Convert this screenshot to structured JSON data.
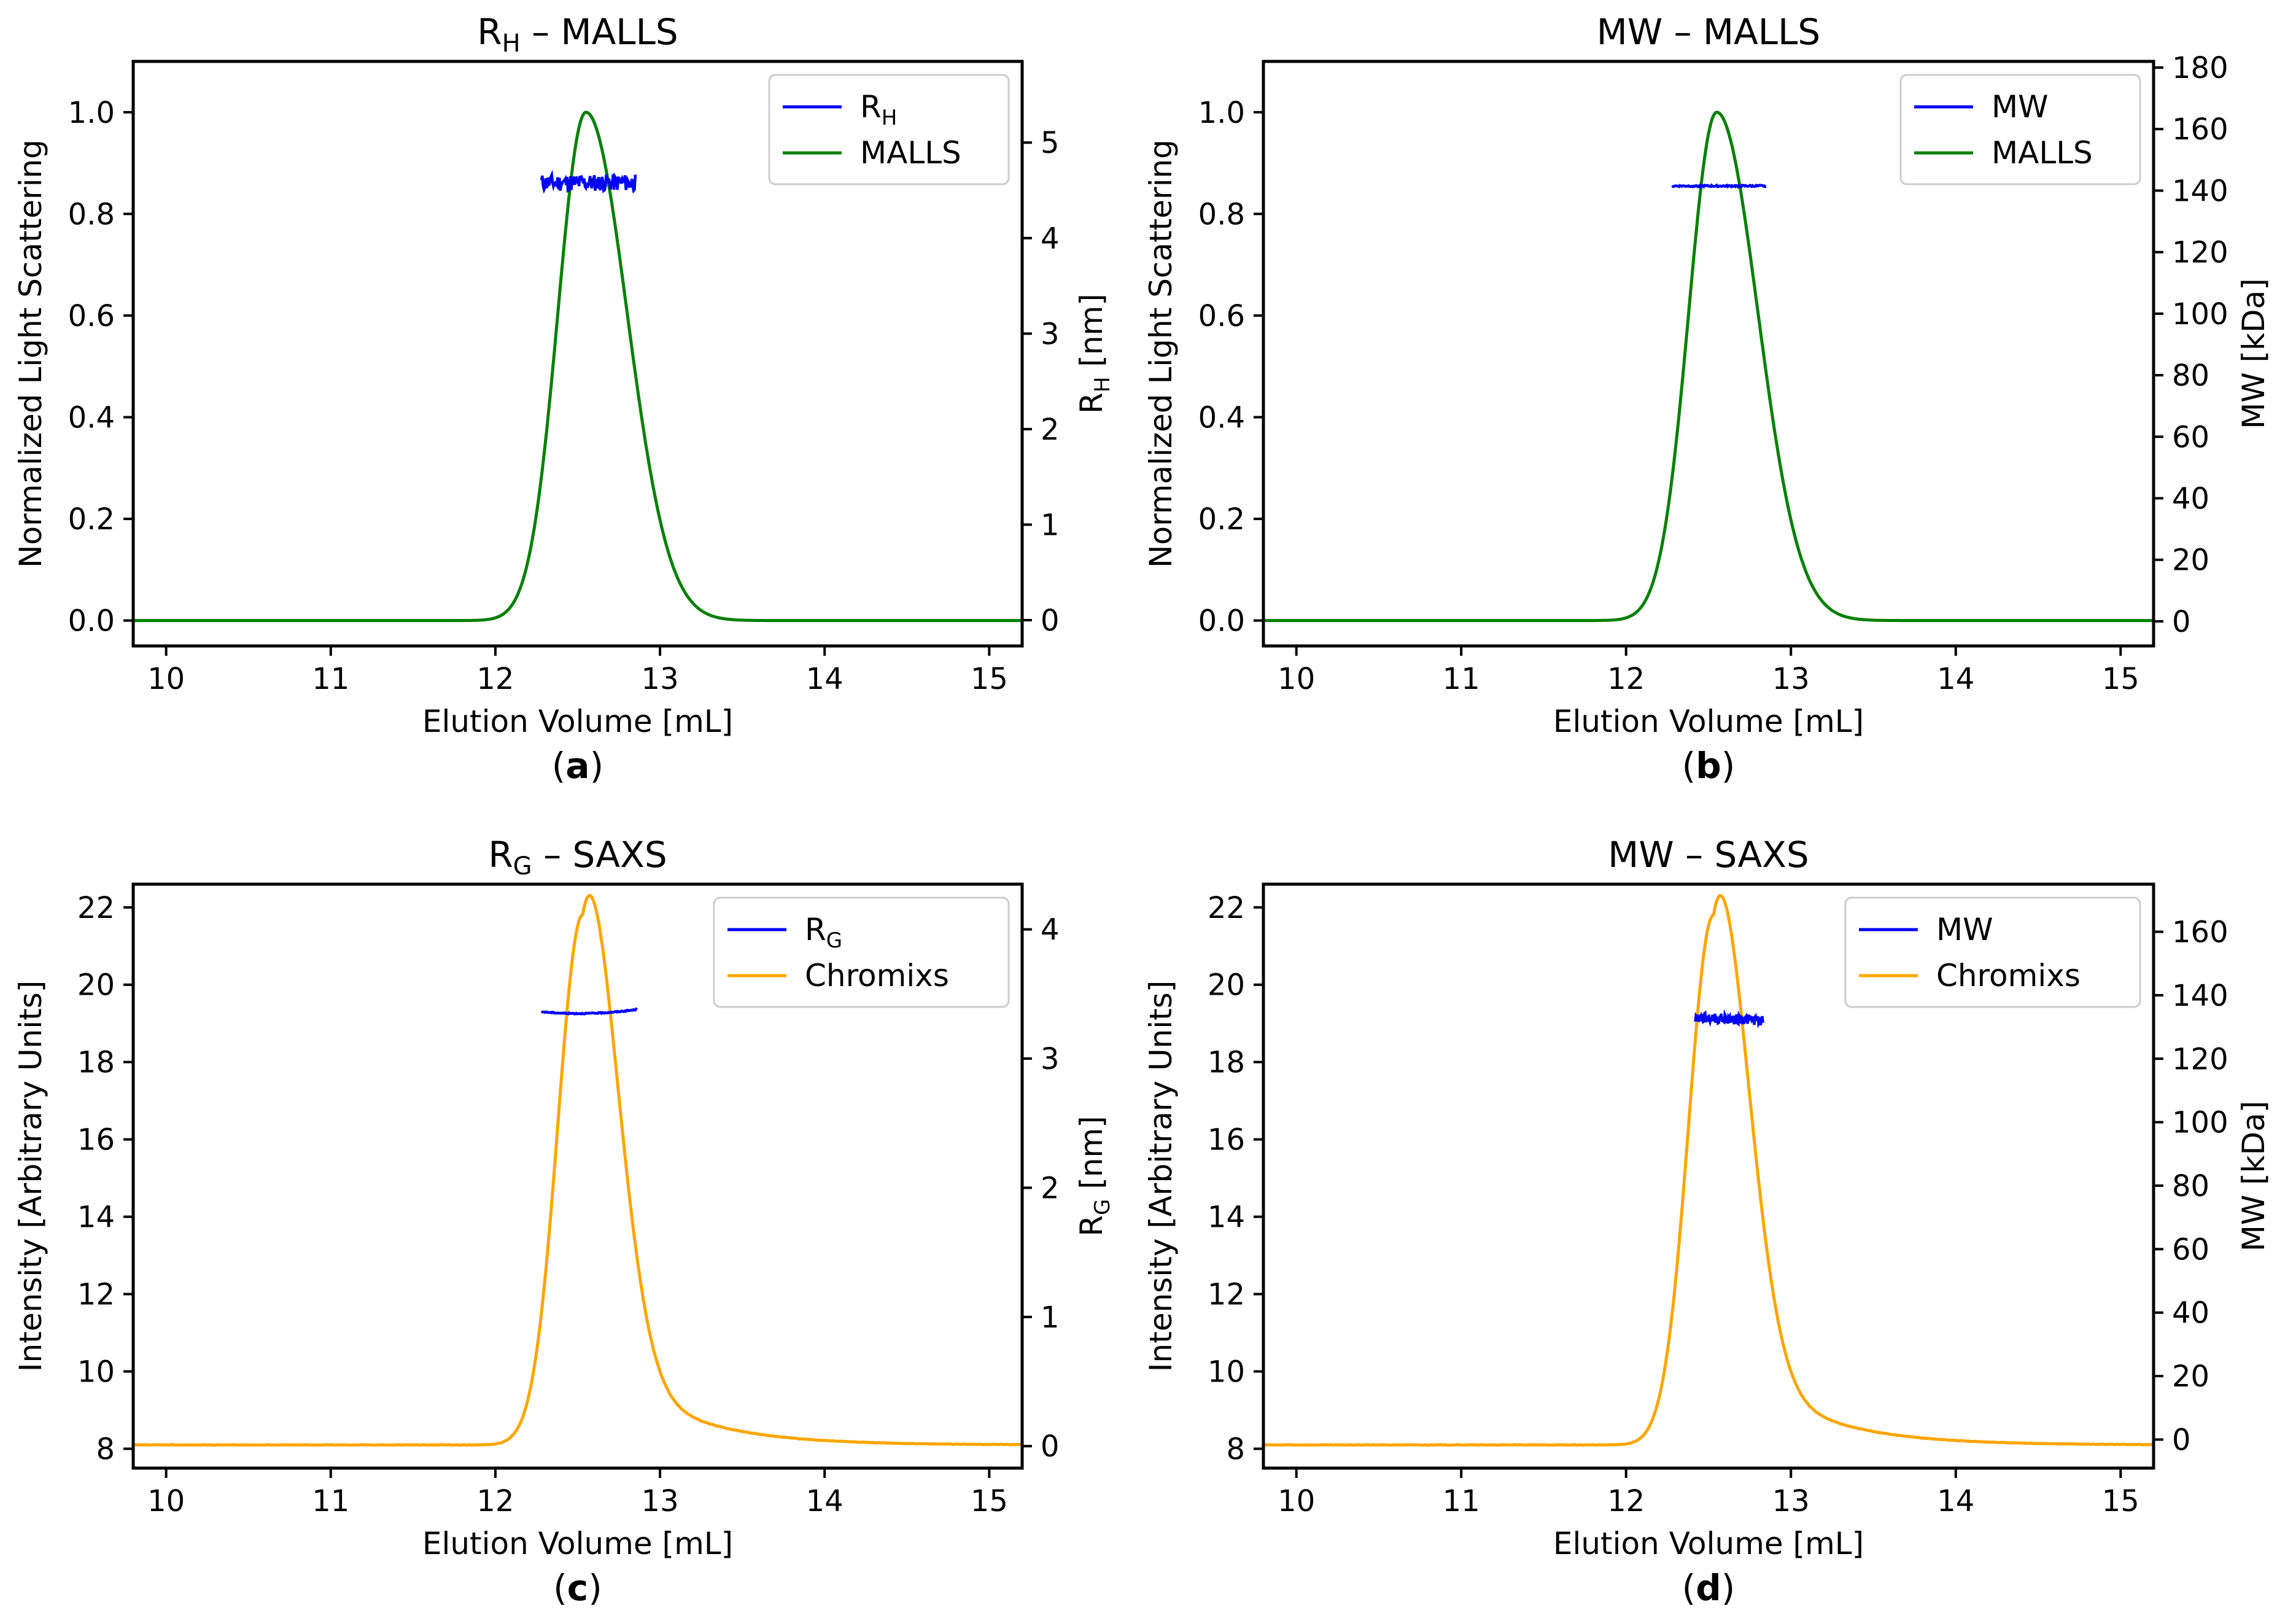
{
  "chart_data": [
    {
      "type": "line",
      "panel": "a",
      "caption": {
        "open": "(",
        "letter": "a",
        "close": ")"
      },
      "title": {
        "main": "R",
        "sub": "H",
        "rest": " – MALLS"
      },
      "xlabel": "Elution Volume [mL]",
      "ylabel": "Normalized Light Scattering",
      "y2label": {
        "main": "R",
        "sub": "H",
        "rest": " [nm]"
      },
      "xlim": [
        9.8,
        15.2
      ],
      "ylim": [
        -0.05,
        1.1
      ],
      "y2lim": [
        -0.27,
        5.85
      ],
      "xticks": [
        10,
        11,
        12,
        13,
        14,
        15
      ],
      "yticks": [
        "0.0",
        "0.2",
        "0.4",
        "0.6",
        "0.8",
        "1.0"
      ],
      "y2ticks": [
        "0",
        "1",
        "2",
        "3",
        "4",
        "5"
      ],
      "legend": {
        "position": "top-right",
        "entries": [
          {
            "main": "R",
            "sub": "H"
          },
          {
            "main": "MALLS",
            "sub": ""
          }
        ]
      },
      "main_series": {
        "name": "MALLS",
        "color": "#008000",
        "baseline": 0.0,
        "peak_x": 12.55,
        "peak_y": 1.0,
        "sigma_left": 0.17,
        "sigma_right": 0.25,
        "tail_amp": 0.0,
        "tail_decay": 0.5,
        "noise": 0.0
      },
      "overlay_series": {
        "name": "R_H",
        "color": "#0000ff",
        "x_range": [
          12.28,
          12.85
        ],
        "mean": 4.58,
        "slope": 0.0,
        "curvature": 0.0,
        "noise": 0.09
      },
      "axis_color": "#000000"
    },
    {
      "type": "line",
      "panel": "b",
      "caption": {
        "open": "(",
        "letter": "b",
        "close": ")"
      },
      "title": {
        "main": "MW – MALLS",
        "sub": "",
        "rest": ""
      },
      "xlabel": "Elution Volume [mL]",
      "ylabel": "Normalized Light Scattering",
      "y2label": {
        "main": "MW [kDa]",
        "sub": "",
        "rest": ""
      },
      "xlim": [
        9.8,
        15.2
      ],
      "ylim": [
        -0.05,
        1.1
      ],
      "y2lim": [
        -8,
        182
      ],
      "xticks": [
        10,
        11,
        12,
        13,
        14,
        15
      ],
      "yticks": [
        "0.0",
        "0.2",
        "0.4",
        "0.6",
        "0.8",
        "1.0"
      ],
      "y2ticks": [
        "0",
        "20",
        "40",
        "60",
        "80",
        "100",
        "120",
        "140",
        "160",
        "180"
      ],
      "legend": {
        "position": "top-right",
        "entries": [
          {
            "main": "MW",
            "sub": ""
          },
          {
            "main": "MALLS",
            "sub": ""
          }
        ]
      },
      "main_series": {
        "name": "MALLS",
        "color": "#008000",
        "baseline": 0.0,
        "peak_x": 12.55,
        "peak_y": 1.0,
        "sigma_left": 0.17,
        "sigma_right": 0.25,
        "tail_amp": 0.0,
        "tail_decay": 0.5,
        "noise": 0.0
      },
      "overlay_series": {
        "name": "MW",
        "color": "#0000ff",
        "x_range": [
          12.28,
          12.85
        ],
        "mean": 141.5,
        "slope": 0.0,
        "curvature": 0.0,
        "noise": 0.25
      },
      "axis_color": "#000000"
    },
    {
      "type": "line",
      "panel": "c",
      "caption": {
        "open": "(",
        "letter": "c",
        "close": ")"
      },
      "title": {
        "main": "R",
        "sub": "G",
        "rest": " – SAXS"
      },
      "xlabel": "Elution Volume [mL]",
      "ylabel": "Intensity [Arbitrary Units]",
      "y2label": {
        "main": "R",
        "sub": "G",
        "rest": " [nm]"
      },
      "xlim": [
        9.8,
        15.2
      ],
      "ylim": [
        7.5,
        22.6
      ],
      "y2lim": [
        -0.17,
        4.35
      ],
      "xticks": [
        10,
        11,
        12,
        13,
        14,
        15
      ],
      "yticks": [
        "8",
        "10",
        "12",
        "14",
        "16",
        "18",
        "20",
        "22"
      ],
      "y2ticks": [
        "0",
        "1",
        "2",
        "3",
        "4"
      ],
      "legend": {
        "position": "top-right",
        "entries": [
          {
            "main": "R",
            "sub": "G"
          },
          {
            "main": "Chromixs",
            "sub": ""
          }
        ]
      },
      "main_series": {
        "name": "Chromixs",
        "color": "#ffa500",
        "baseline": 8.1,
        "peak_x": 12.53,
        "peak_y": 21.8,
        "sigma_left": 0.15,
        "sigma_right": 0.2,
        "tail_amp": 3.0,
        "tail_decay": 0.45,
        "noise": 0.012
      },
      "overlay_series": {
        "name": "R_G",
        "color": "#0000ff",
        "x_range": [
          12.28,
          12.86
        ],
        "mean": 3.35,
        "slope": 0.03,
        "curvature": 0.25,
        "noise": 0.004
      },
      "axis_color": "#000000"
    },
    {
      "type": "line",
      "panel": "d",
      "caption": {
        "open": "(",
        "letter": "d",
        "close": ")"
      },
      "title": {
        "main": "MW – SAXS",
        "sub": "",
        "rest": ""
      },
      "xlabel": "Elution Volume [mL]",
      "ylabel": "Intensity [Arbitrary Units]",
      "y2label": {
        "main": "MW [kDa]",
        "sub": "",
        "rest": ""
      },
      "xlim": [
        9.8,
        15.2
      ],
      "ylim": [
        7.5,
        22.6
      ],
      "y2lim": [
        -9,
        175
      ],
      "xticks": [
        10,
        11,
        12,
        13,
        14,
        15
      ],
      "yticks": [
        "8",
        "10",
        "12",
        "14",
        "16",
        "18",
        "20",
        "22"
      ],
      "y2ticks": [
        "0",
        "20",
        "40",
        "60",
        "80",
        "100",
        "120",
        "140",
        "160"
      ],
      "legend": {
        "position": "top-right",
        "entries": [
          {
            "main": "MW",
            "sub": ""
          },
          {
            "main": "Chromixs",
            "sub": ""
          }
        ]
      },
      "main_series": {
        "name": "Chromixs",
        "color": "#ffa500",
        "baseline": 8.1,
        "peak_x": 12.53,
        "peak_y": 21.8,
        "sigma_left": 0.15,
        "sigma_right": 0.2,
        "tail_amp": 3.0,
        "tail_decay": 0.45,
        "noise": 0.012
      },
      "overlay_series": {
        "name": "MW",
        "color": "#0000ff",
        "x_range": [
          12.42,
          12.83
        ],
        "mean": 132.5,
        "slope": -2.0,
        "curvature": 0.0,
        "noise": 1.6
      },
      "axis_color": "#000000"
    }
  ]
}
